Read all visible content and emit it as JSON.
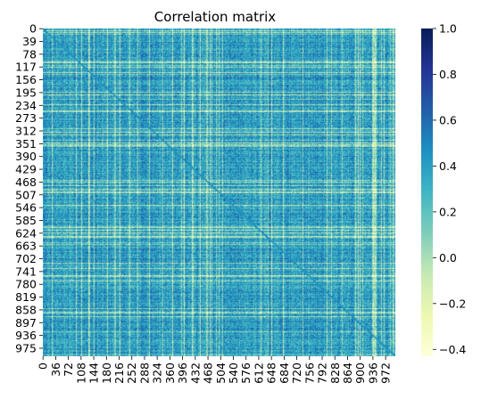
{
  "chart_data": {
    "type": "heatmap",
    "title": "Correlation matrix",
    "xlabel": "",
    "ylabel": "",
    "matrix_size": 1000,
    "y_ticks": [
      "0",
      "39",
      "78",
      "117",
      "156",
      "195",
      "234",
      "273",
      "312",
      "351",
      "390",
      "429",
      "468",
      "507",
      "546",
      "585",
      "624",
      "663",
      "702",
      "741",
      "780",
      "819",
      "858",
      "897",
      "936",
      "975"
    ],
    "x_ticks": [
      "0",
      "36",
      "72",
      "108",
      "144",
      "180",
      "216",
      "252",
      "288",
      "324",
      "360",
      "396",
      "432",
      "468",
      "504",
      "540",
      "576",
      "612",
      "648",
      "684",
      "720",
      "756",
      "792",
      "828",
      "864",
      "900",
      "936",
      "972"
    ],
    "colorbar": {
      "colormap": "YlGnBu",
      "vmin": -0.43,
      "vmax": 1.0,
      "ticks": [
        "1.0",
        "0.8",
        "0.6",
        "0.4",
        "0.2",
        "0.0",
        "−0.2",
        "−0.4"
      ],
      "tick_values": [
        1.0,
        0.8,
        0.6,
        0.4,
        0.2,
        0.0,
        -0.2,
        -0.4
      ]
    },
    "diagonal_value": 1.0,
    "typical_offdiag_range": [
      0.1,
      0.6
    ]
  }
}
